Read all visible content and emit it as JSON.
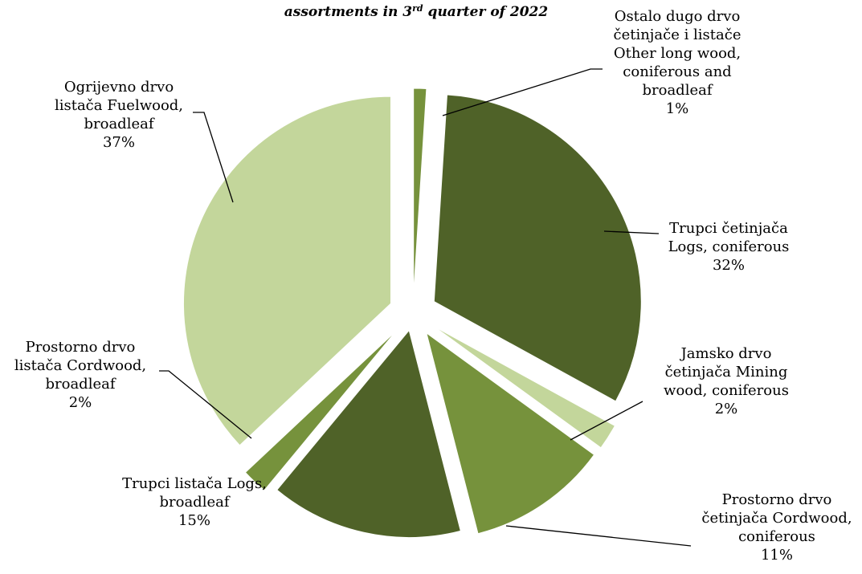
{
  "chart_data": {
    "type": "pie",
    "title": "assortments in 3rd quarter of 2022",
    "title_main": "assortments in 3",
    "title_sup": "rd",
    "title_rest": " quarter of 2022",
    "exploded": true,
    "legend": "none",
    "slices": [
      {
        "name": "Ostalo dugo drvo četinjače i listače Other long wood, coniferous and broadleaf",
        "label_lines": [
          "Ostalo dugo drvo",
          "četinjače i listače",
          "Other long wood,",
          "coniferous and",
          "broadleaf"
        ],
        "percent_label": "1%",
        "value": 1,
        "color": "#76923c"
      },
      {
        "name": "Trupci četinjača Logs, coniferous",
        "label_lines": [
          "Trupci četinjača",
          "Logs, coniferous"
        ],
        "percent_label": "32%",
        "value": 32,
        "color": "#4f6228"
      },
      {
        "name": "Jamsko drvo četinjača Mining wood, coniferous",
        "label_lines": [
          "Jamsko drvo",
          "četinjača Mining",
          "wood, coniferous"
        ],
        "percent_label": "2%",
        "value": 2,
        "color": "#c3d69b"
      },
      {
        "name": "Prostorno drvo četinjača Cordwood, coniferous",
        "label_lines": [
          "Prostorno drvo",
          "četinjača Cordwood,",
          "coniferous"
        ],
        "percent_label": "11%",
        "value": 11,
        "color": "#76923c"
      },
      {
        "name": "Trupci listača Logs, broadleaf",
        "label_lines": [
          "Trupci listača Logs,",
          "broadleaf"
        ],
        "percent_label": "15%",
        "value": 15,
        "color": "#4f6228"
      },
      {
        "name": "Prostorno drvo listača Cordwood, broadleaf",
        "label_lines": [
          "Prostorno drvo",
          "listača Cordwood,",
          "broadleaf"
        ],
        "percent_label": "2%",
        "value": 2,
        "color": "#76923c"
      },
      {
        "name": "Ogrijevno drvo listača Fuelwood, broadleaf",
        "label_lines": [
          "Ogrijevno drvo",
          "listača  Fuelwood,",
          "broadleaf"
        ],
        "percent_label": "37%",
        "value": 37,
        "color": "#c3d69b"
      }
    ]
  }
}
